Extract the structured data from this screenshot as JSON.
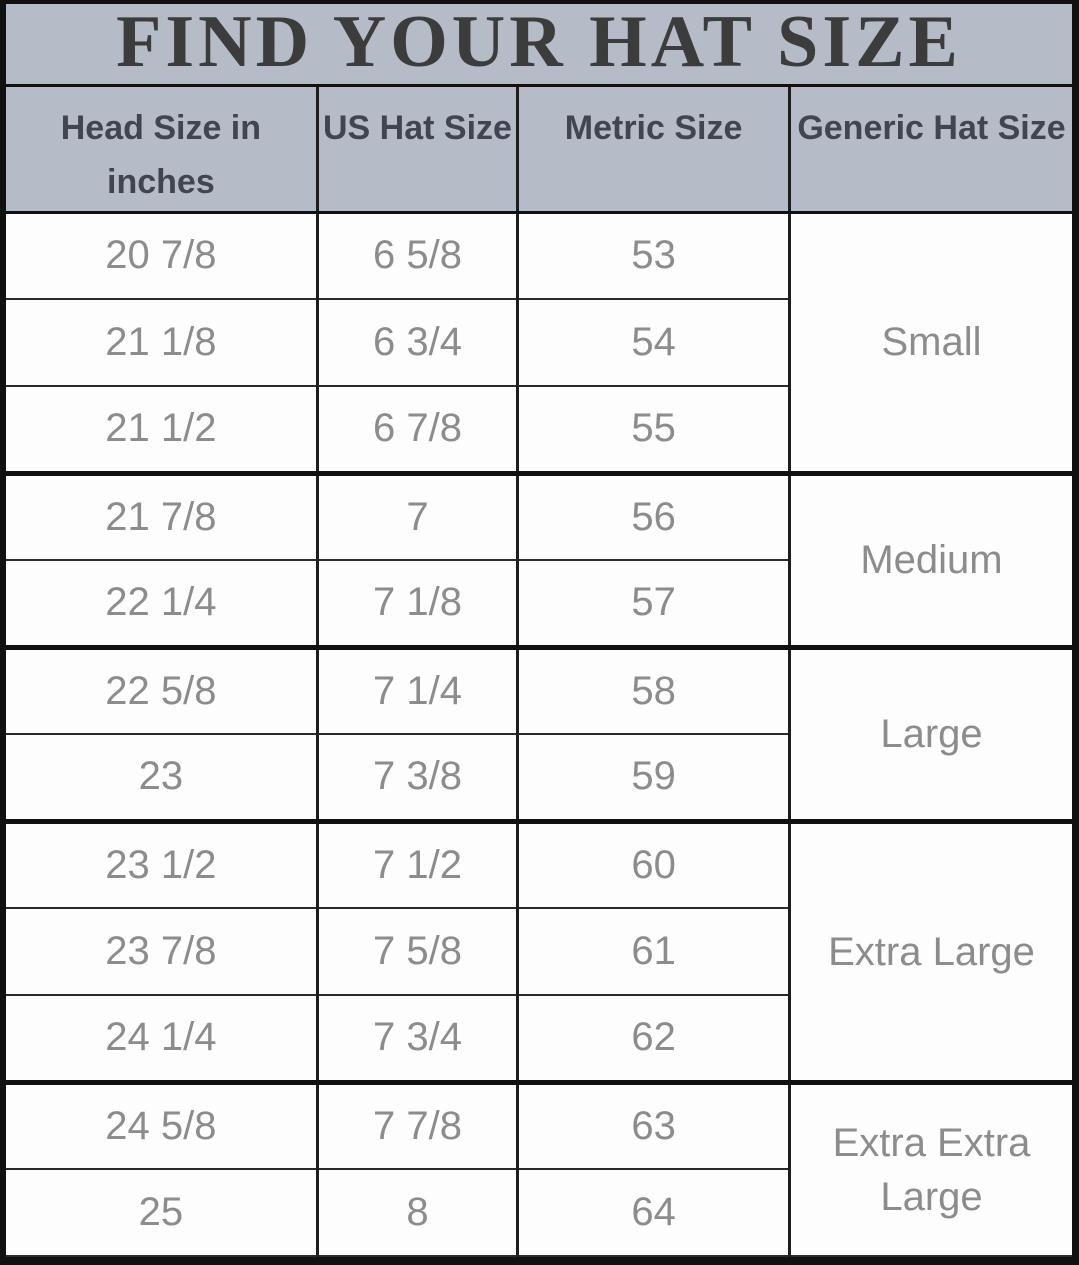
{
  "title": "FIND YOUR HAT SIZE",
  "colors": {
    "band_bg": "#b5bcc7",
    "title_text": "#3c3c3c",
    "header_text": "#41454f",
    "body_text": "#8c8c8c",
    "border": "#111111",
    "row_bg": "#fdfdfd"
  },
  "table": {
    "columns": [
      "Head Size in inches",
      "US Hat Size",
      "Metric Size",
      "Generic Hat Size"
    ],
    "groups": [
      {
        "generic": "Small",
        "rows": [
          [
            "20 7/8",
            "6 5/8",
            "53"
          ],
          [
            "21 1/8",
            "6 3/4",
            "54"
          ],
          [
            "21 1/2",
            "6 7/8",
            "55"
          ]
        ]
      },
      {
        "generic": "Medium",
        "rows": [
          [
            "21 7/8",
            "7",
            "56"
          ],
          [
            "22 1/4",
            "7 1/8",
            "57"
          ]
        ]
      },
      {
        "generic": "Large",
        "rows": [
          [
            "22 5/8",
            "7 1/4",
            "58"
          ],
          [
            "23",
            "7 3/8",
            "59"
          ]
        ]
      },
      {
        "generic": "Extra Large",
        "rows": [
          [
            "23 1/2",
            "7 1/2",
            "60"
          ],
          [
            "23 7/8",
            "7 5/8",
            "61"
          ],
          [
            "24 1/4",
            "7 3/4",
            "62"
          ]
        ]
      },
      {
        "generic": "Extra Extra Large",
        "rows": [
          [
            "24 5/8",
            "7 7/8",
            "63"
          ],
          [
            "25",
            "8",
            "64"
          ]
        ]
      }
    ]
  }
}
